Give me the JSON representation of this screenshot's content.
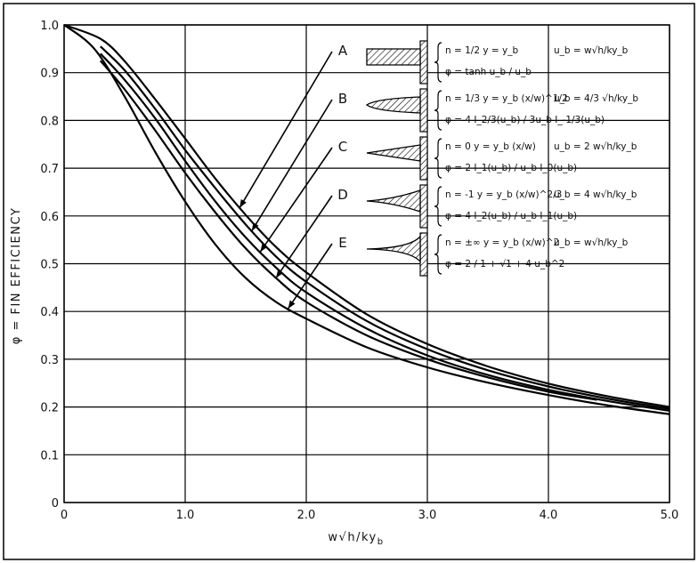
{
  "chart_data": {
    "type": "line",
    "title": "",
    "xlabel": "w√h/ky_b",
    "ylabel": "φ = FIN EFFICIENCY",
    "xlim": [
      0,
      5
    ],
    "ylim": [
      0,
      1
    ],
    "x_ticks": [
      "0",
      "1.0",
      "2.0",
      "3.0",
      "4.0",
      "5.0"
    ],
    "y_ticks": [
      "0",
      "0.1",
      "0.2",
      "0.3",
      "0.4",
      "0.5",
      "0.6",
      "0.7",
      "0.8",
      "0.9",
      "1.0"
    ],
    "grid": true,
    "series": [
      {
        "name": "A",
        "x": [
          0,
          0.3,
          0.5,
          0.75,
          1.0,
          1.25,
          1.5,
          1.75,
          2.0,
          2.5,
          3.0,
          3.5,
          4.0,
          4.5,
          5.0
        ],
        "y": [
          1.0,
          0.971,
          0.924,
          0.845,
          0.762,
          0.678,
          0.602,
          0.535,
          0.482,
          0.394,
          0.332,
          0.285,
          0.249,
          0.222,
          0.2
        ]
      },
      {
        "name": "B",
        "x": [
          0.3,
          0.5,
          0.75,
          1.0,
          1.25,
          1.5,
          1.75,
          2.0,
          2.5,
          3.0,
          3.5,
          4.0,
          4.5,
          5.0
        ],
        "y": [
          0.955,
          0.905,
          0.825,
          0.738,
          0.658,
          0.582,
          0.515,
          0.462,
          0.38,
          0.321,
          0.277,
          0.243,
          0.217,
          0.196
        ]
      },
      {
        "name": "C",
        "x": [
          0.3,
          0.5,
          0.75,
          1.0,
          1.25,
          1.5,
          1.75,
          2.0,
          2.5,
          3.0,
          3.5,
          4.0,
          4.5,
          5.0
        ],
        "y": [
          0.94,
          0.885,
          0.805,
          0.715,
          0.63,
          0.555,
          0.492,
          0.44,
          0.364,
          0.308,
          0.267,
          0.236,
          0.212,
          0.192
        ]
      },
      {
        "name": "D",
        "x": [
          0.3,
          0.5,
          0.75,
          1.0,
          1.25,
          1.5,
          1.75,
          2.0,
          2.5,
          3.0,
          3.5,
          4.0,
          4.4
        ],
        "y": [
          0.925,
          0.865,
          0.78,
          0.69,
          0.607,
          0.532,
          0.47,
          0.42,
          0.35,
          0.3,
          0.262,
          0.232,
          0.215
        ]
      },
      {
        "name": "E",
        "x": [
          0,
          0.25,
          0.5,
          0.75,
          1.0,
          1.25,
          1.5,
          1.75,
          2.0,
          2.5,
          3.0,
          3.5,
          4.0,
          4.5,
          5.0
        ],
        "y": [
          1.0,
          0.95,
          0.85,
          0.735,
          0.63,
          0.54,
          0.47,
          0.42,
          0.385,
          0.325,
          0.283,
          0.251,
          0.225,
          0.203,
          0.185
        ]
      }
    ],
    "legend": [
      {
        "label": "A",
        "line1": "n = 1/2   y = y_b",
        "ub": "u_b = w√h/ky_b",
        "phi": "φ = tanh u_b / u_b"
      },
      {
        "label": "B",
        "line1": "n = 1/3   y = y_b (x/w)^1/2",
        "ub": "u_b = 4/3 √h/ky_b",
        "phi": "φ = 4 I_2/3(u_b) / 3u_b I_-1/3(u_b)"
      },
      {
        "label": "C",
        "line1": "n = 0   y = y_b (x/w)",
        "ub": "u_b = 2 w√h/ky_b",
        "phi": "φ = 2 I_1(u_b) / u_b I_0(u_b)"
      },
      {
        "label": "D",
        "line1": "n = -1   y = y_b (x/w)^2/3",
        "ub": "u_b = 4 w√h/ky_b",
        "phi": "φ = 4 I_2(u_b) / u_b I_1(u_b)"
      },
      {
        "label": "E",
        "line1": "n = ±∞   y = y_b (x/w)^2",
        "ub": "u_b = w√h/ky_b",
        "phi": "φ = 2 / 1 + √1 + 4 u_b^2"
      }
    ]
  }
}
